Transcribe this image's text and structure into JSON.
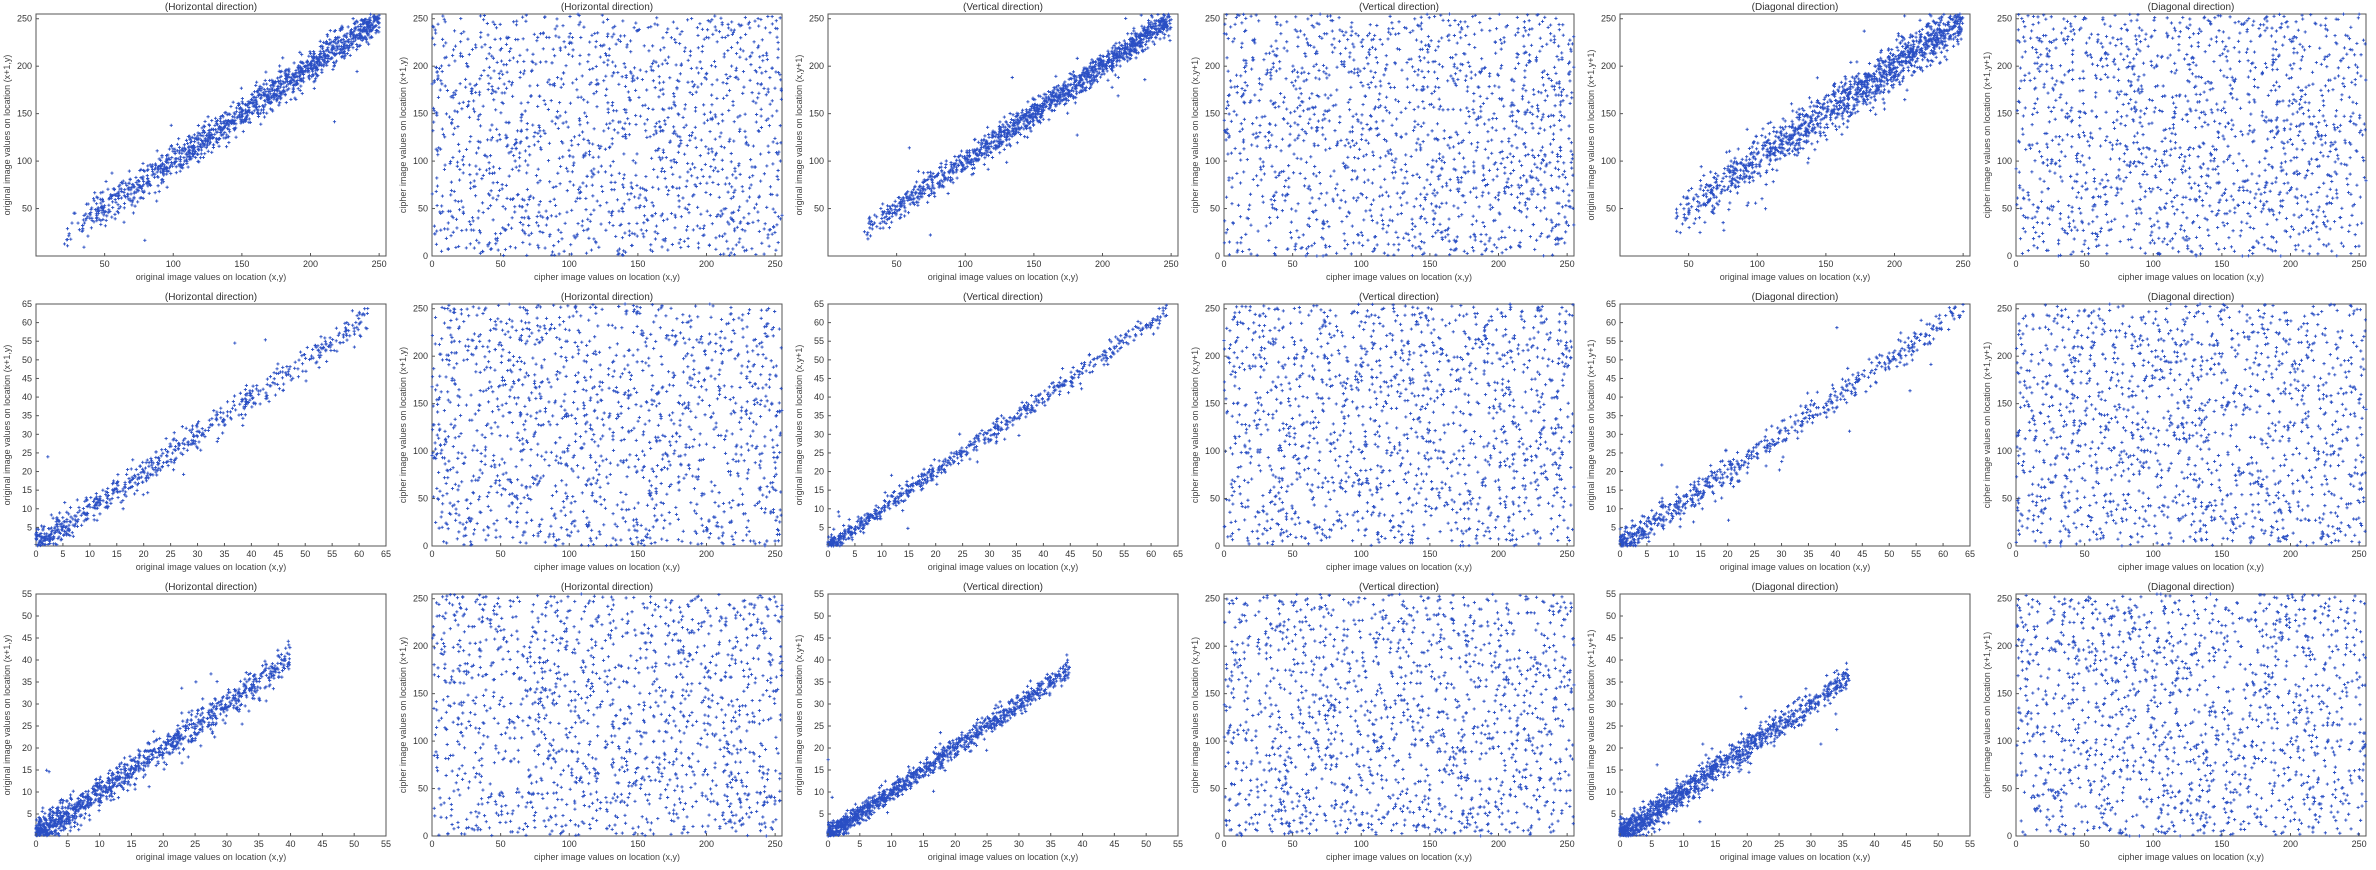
{
  "figure": {
    "accent_color": "#2a4fc4",
    "axis_color": "#555555"
  },
  "chart_data": [
    {
      "type": "scatter",
      "title": "(Horizontal direction)",
      "xlabel": "original image values on location (x,y)",
      "ylabel": "original image values on location (x+1,y)",
      "xlim": [
        0,
        255
      ],
      "ylim": [
        0,
        255
      ],
      "xticks": [
        50,
        100,
        150,
        200,
        250
      ],
      "yticks": [
        50,
        100,
        150,
        200,
        250
      ],
      "grid": false,
      "pattern": "correlated",
      "n": 1400,
      "x_range": [
        20,
        250
      ],
      "spread": 9,
      "seed": 11
    },
    {
      "type": "scatter",
      "title": "(Horizontal direction)",
      "xlabel": "cipher image values on location (x,y)",
      "ylabel": "cipher image values on location (x+1,y)",
      "xlim": [
        0,
        255
      ],
      "ylim": [
        0,
        255
      ],
      "xticks": [
        0,
        50,
        100,
        150,
        200,
        250
      ],
      "yticks": [
        0,
        50,
        100,
        150,
        200,
        250
      ],
      "grid": false,
      "pattern": "uniform",
      "n": 1500,
      "seed": 12
    },
    {
      "type": "scatter",
      "title": "(Vertical direction)",
      "xlabel": "original image values on location (x,y)",
      "ylabel": "original image values on location (x,y+1)",
      "xlim": [
        0,
        255
      ],
      "ylim": [
        0,
        255
      ],
      "xticks": [
        50,
        100,
        150,
        200,
        250
      ],
      "yticks": [
        50,
        100,
        150,
        200,
        250
      ],
      "grid": false,
      "pattern": "correlated",
      "n": 1400,
      "x_range": [
        25,
        250
      ],
      "spread": 7,
      "seed": 13
    },
    {
      "type": "scatter",
      "title": "(Vertical direction)",
      "xlabel": "cipher image values on location (x,y)",
      "ylabel": "cipher image values on location (x,y+1)",
      "xlim": [
        0,
        255
      ],
      "ylim": [
        0,
        255
      ],
      "xticks": [
        0,
        50,
        100,
        150,
        200,
        250
      ],
      "yticks": [
        0,
        50,
        100,
        150,
        200,
        250
      ],
      "grid": false,
      "pattern": "uniform",
      "n": 1500,
      "seed": 14
    },
    {
      "type": "scatter",
      "title": "(Diagonal direction)",
      "xlabel": "original image values on location (x,y)",
      "ylabel": "original image values on location (x+1,y+1)",
      "xlim": [
        0,
        255
      ],
      "ylim": [
        0,
        255
      ],
      "xticks": [
        50,
        100,
        150,
        200,
        250
      ],
      "yticks": [
        50,
        100,
        150,
        200,
        250
      ],
      "grid": false,
      "pattern": "correlated",
      "n": 1400,
      "x_range": [
        40,
        250
      ],
      "spread": 12,
      "seed": 15
    },
    {
      "type": "scatter",
      "title": "(Diagonal direction)",
      "xlabel": "cipher image values on location (x,y)",
      "ylabel": "cipher image values on location (x+1,y+1)",
      "xlim": [
        0,
        255
      ],
      "ylim": [
        0,
        255
      ],
      "xticks": [
        0,
        50,
        100,
        150,
        200,
        250
      ],
      "yticks": [
        0,
        50,
        100,
        150,
        200,
        250
      ],
      "grid": false,
      "pattern": "uniform",
      "n": 1500,
      "seed": 16
    },
    {
      "type": "scatter",
      "title": "(Horizontal direction)",
      "xlabel": "original image values on location (x,y)",
      "ylabel": "original image values on location (x+1,y)",
      "xlim": [
        0,
        65
      ],
      "ylim": [
        0,
        65
      ],
      "xticks": [
        0,
        5,
        10,
        15,
        20,
        25,
        30,
        35,
        40,
        45,
        50,
        55,
        60,
        65
      ],
      "yticks": [
        5,
        10,
        15,
        20,
        25,
        30,
        35,
        40,
        45,
        50,
        55,
        60,
        65
      ],
      "grid": false,
      "pattern": "correlated",
      "n": 700,
      "x_range": [
        0,
        62
      ],
      "spread": 2.2,
      "seed": 21
    },
    {
      "type": "scatter",
      "title": "(Horizontal direction)",
      "xlabel": "cipher image values on location (x,y)",
      "ylabel": "cipher image values on location (x+1,y)",
      "xlim": [
        0,
        255
      ],
      "ylim": [
        0,
        255
      ],
      "xticks": [
        0,
        50,
        100,
        150,
        200,
        250
      ],
      "yticks": [
        0,
        50,
        100,
        150,
        200,
        250
      ],
      "grid": false,
      "pattern": "uniform",
      "n": 1500,
      "seed": 22
    },
    {
      "type": "scatter",
      "title": "(Vertical direction)",
      "xlabel": "original image values on location (x,y)",
      "ylabel": "original image values on location (x,y+1)",
      "xlim": [
        0,
        65
      ],
      "ylim": [
        0,
        65
      ],
      "xticks": [
        0,
        5,
        10,
        15,
        20,
        25,
        30,
        35,
        40,
        45,
        50,
        55,
        60,
        65
      ],
      "yticks": [
        5,
        10,
        15,
        20,
        25,
        30,
        35,
        40,
        45,
        50,
        55,
        60,
        65
      ],
      "grid": false,
      "pattern": "correlated",
      "n": 700,
      "x_range": [
        0,
        63
      ],
      "spread": 1.2,
      "seed": 23
    },
    {
      "type": "scatter",
      "title": "(Vertical direction)",
      "xlabel": "cipher image values on location (x,y)",
      "ylabel": "cipher image values on location (x,y+1)",
      "xlim": [
        0,
        255
      ],
      "ylim": [
        0,
        255
      ],
      "xticks": [
        0,
        50,
        100,
        150,
        200,
        250
      ],
      "yticks": [
        0,
        50,
        100,
        150,
        200,
        250
      ],
      "grid": false,
      "pattern": "uniform",
      "n": 1500,
      "seed": 24
    },
    {
      "type": "scatter",
      "title": "(Diagonal direction)",
      "xlabel": "original image values on location (x,y)",
      "ylabel": "original image values on location (x+1,y+1)",
      "xlim": [
        0,
        65
      ],
      "ylim": [
        0,
        65
      ],
      "xticks": [
        0,
        5,
        10,
        15,
        20,
        25,
        30,
        35,
        40,
        45,
        50,
        55,
        60,
        65
      ],
      "yticks": [
        5,
        10,
        15,
        20,
        25,
        30,
        35,
        40,
        45,
        50,
        55,
        60,
        65
      ],
      "grid": false,
      "pattern": "correlated",
      "n": 700,
      "x_range": [
        0,
        64
      ],
      "spread": 2.0,
      "seed": 25
    },
    {
      "type": "scatter",
      "title": "(Diagonal direction)",
      "xlabel": "cipher image values on location (x,y)",
      "ylabel": "cipher image values on location (x+1,y+1)",
      "xlim": [
        0,
        255
      ],
      "ylim": [
        0,
        255
      ],
      "xticks": [
        0,
        50,
        100,
        150,
        200,
        250
      ],
      "yticks": [
        0,
        50,
        100,
        150,
        200,
        250
      ],
      "grid": false,
      "pattern": "uniform",
      "n": 1500,
      "seed": 26
    },
    {
      "type": "scatter",
      "title": "(Horizontal direction)",
      "xlabel": "original image values on location (x,y)",
      "ylabel": "original image values on location (x+1,y)",
      "xlim": [
        0,
        55
      ],
      "ylim": [
        0,
        55
      ],
      "xticks": [
        0,
        5,
        10,
        15,
        20,
        25,
        30,
        35,
        40,
        45,
        50,
        55
      ],
      "yticks": [
        5,
        10,
        15,
        20,
        25,
        30,
        35,
        40,
        45,
        50,
        55
      ],
      "grid": false,
      "pattern": "correlated",
      "n": 1200,
      "x_range": [
        0,
        40
      ],
      "spread": 1.8,
      "seed": 31
    },
    {
      "type": "scatter",
      "title": "(Horizontal direction)",
      "xlabel": "cipher image values on location (x,y)",
      "ylabel": "cipher image values on location (x+1,y)",
      "xlim": [
        0,
        255
      ],
      "ylim": [
        0,
        255
      ],
      "xticks": [
        0,
        50,
        100,
        150,
        200,
        250
      ],
      "yticks": [
        0,
        50,
        100,
        150,
        200,
        250
      ],
      "grid": false,
      "pattern": "uniform",
      "n": 1500,
      "seed": 32
    },
    {
      "type": "scatter",
      "title": "(Vertical direction)",
      "xlabel": "original image values on location (x,y)",
      "ylabel": "original image values on location (x,y+1)",
      "xlim": [
        0,
        55
      ],
      "ylim": [
        0,
        55
      ],
      "xticks": [
        0,
        5,
        10,
        15,
        20,
        25,
        30,
        35,
        40,
        45,
        50,
        55
      ],
      "yticks": [
        5,
        10,
        15,
        20,
        25,
        30,
        35,
        40,
        45,
        50,
        55
      ],
      "grid": false,
      "pattern": "correlated",
      "n": 1200,
      "x_range": [
        0,
        38
      ],
      "spread": 1.2,
      "seed": 33
    },
    {
      "type": "scatter",
      "title": "(Vertical direction)",
      "xlabel": "cipher image values on location (x,y)",
      "ylabel": "cipher image values on location (x,y+1)",
      "xlim": [
        0,
        255
      ],
      "ylim": [
        0,
        255
      ],
      "xticks": [
        0,
        50,
        100,
        150,
        200,
        250
      ],
      "yticks": [
        0,
        50,
        100,
        150,
        200,
        250
      ],
      "grid": false,
      "pattern": "uniform",
      "n": 1500,
      "seed": 34
    },
    {
      "type": "scatter",
      "title": "(Diagonal direction)",
      "xlabel": "original image values on location (x,y)",
      "ylabel": "original image values on location (x+1,y+1)",
      "xlim": [
        0,
        55
      ],
      "ylim": [
        0,
        55
      ],
      "xticks": [
        0,
        5,
        10,
        15,
        20,
        25,
        30,
        35,
        40,
        45,
        50,
        55
      ],
      "yticks": [
        5,
        10,
        15,
        20,
        25,
        30,
        35,
        40,
        45,
        50,
        55
      ],
      "grid": false,
      "pattern": "correlated",
      "n": 1200,
      "x_range": [
        0,
        36
      ],
      "spread": 1.6,
      "seed": 35
    },
    {
      "type": "scatter",
      "title": "(Diagonal direction)",
      "xlabel": "cipher image values on location (x,y)",
      "ylabel": "cipher image values on location (x+1,y+1)",
      "xlim": [
        0,
        255
      ],
      "ylim": [
        0,
        255
      ],
      "xticks": [
        0,
        50,
        100,
        150,
        200,
        250
      ],
      "yticks": [
        0,
        50,
        100,
        150,
        200,
        250
      ],
      "grid": false,
      "pattern": "uniform",
      "n": 1500,
      "seed": 36
    }
  ]
}
